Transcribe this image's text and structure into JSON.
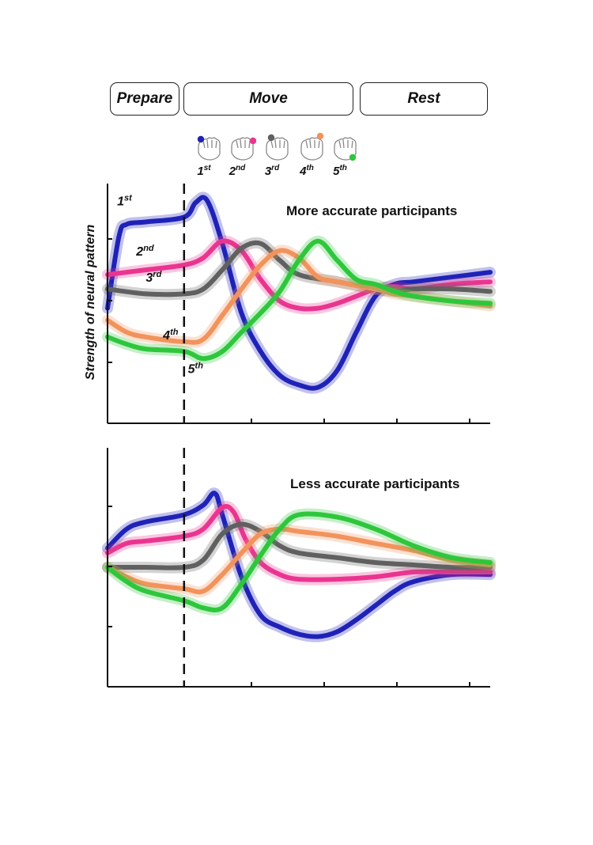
{
  "phases": [
    {
      "label": "Prepare"
    },
    {
      "label": "Move"
    },
    {
      "label": "Rest"
    }
  ],
  "legend": [
    {
      "base": "1",
      "sup": "st",
      "color": "#1f22b8"
    },
    {
      "base": "2",
      "sup": "nd",
      "color": "#ea3590"
    },
    {
      "base": "3",
      "sup": "rd",
      "color": "#606060"
    },
    {
      "base": "4",
      "sup": "th",
      "color": "#f2935c"
    },
    {
      "base": "5",
      "sup": "th",
      "color": "#2ec73c"
    }
  ],
  "chart_data": [
    {
      "type": "line",
      "title": "More accurate participants",
      "ylabel": "Strength of neural pattern",
      "xlabel": "",
      "xlim": [
        0,
        10
      ],
      "ylim": [
        0,
        10
      ],
      "grid": false,
      "prepare_end_x": 2,
      "series": [
        {
          "name": "1st",
          "color": "#1f22b8",
          "x": [
            0,
            0.3,
            0.5,
            1,
            2,
            2.3,
            2.6,
            3,
            3.5,
            4,
            4.5,
            5,
            5.5,
            6,
            6.5,
            7,
            7.5,
            8,
            9,
            10
          ],
          "y": [
            4.8,
            7.8,
            8.3,
            8.4,
            8.6,
            9.2,
            9.3,
            7.5,
            4.6,
            3.0,
            2.0,
            1.6,
            1.5,
            2.2,
            3.8,
            5.3,
            5.8,
            5.9,
            6.1,
            6.3
          ]
        },
        {
          "name": "2nd",
          "color": "#ea3590",
          "x": [
            0,
            1,
            2,
            2.5,
            3,
            3.5,
            4,
            4.5,
            5,
            5.5,
            6,
            6.5,
            7,
            7.5,
            8,
            9,
            10
          ],
          "y": [
            6.2,
            6.4,
            6.6,
            6.9,
            7.6,
            7.2,
            6.0,
            5.1,
            4.8,
            4.8,
            5.0,
            5.3,
            5.6,
            5.7,
            5.6,
            5.8,
            5.9
          ]
        },
        {
          "name": "3rd",
          "color": "#606060",
          "x": [
            0,
            1,
            2,
            2.5,
            3,
            3.5,
            4,
            4.5,
            5,
            6,
            7,
            7.5,
            8,
            9,
            10
          ],
          "y": [
            5.6,
            5.4,
            5.4,
            5.6,
            6.4,
            7.3,
            7.5,
            6.8,
            6.2,
            5.9,
            5.6,
            5.5,
            5.6,
            5.6,
            5.5
          ]
        },
        {
          "name": "4th",
          "color": "#f2935c",
          "x": [
            0,
            0.5,
            1,
            2,
            2.5,
            3,
            3.5,
            4,
            4.5,
            5,
            5.5,
            6,
            7,
            7.5,
            8,
            9,
            10
          ],
          "y": [
            4.3,
            3.8,
            3.6,
            3.4,
            3.5,
            4.5,
            5.6,
            6.6,
            7.2,
            6.9,
            6.1,
            5.9,
            5.6,
            5.4,
            5.3,
            5.1,
            4.9
          ]
        },
        {
          "name": "5th",
          "color": "#2ec73c",
          "x": [
            0,
            0.5,
            1,
            2,
            2.5,
            3,
            3.5,
            4,
            4.5,
            5,
            5.5,
            6,
            6.5,
            7,
            7.5,
            8,
            9,
            10
          ],
          "y": [
            3.6,
            3.3,
            3.1,
            3.0,
            2.7,
            3.0,
            3.8,
            4.6,
            5.5,
            6.8,
            7.6,
            6.8,
            6.0,
            5.8,
            5.5,
            5.3,
            5.1,
            5.0
          ]
        }
      ]
    },
    {
      "type": "line",
      "title": "Less accurate participants",
      "ylabel": "",
      "xlabel": "",
      "xlim": [
        0,
        10
      ],
      "ylim": [
        0,
        10
      ],
      "grid": false,
      "prepare_end_x": 2,
      "series": [
        {
          "name": "1st",
          "color": "#1f22b8",
          "x": [
            0,
            0.5,
            1,
            2,
            2.5,
            2.8,
            3,
            3.5,
            4,
            4.5,
            5,
            5.5,
            6,
            6.5,
            7,
            7.5,
            8,
            9,
            10
          ],
          "y": [
            5.8,
            6.6,
            6.9,
            7.2,
            7.6,
            8.1,
            7.2,
            4.6,
            3.0,
            2.5,
            2.2,
            2.1,
            2.3,
            2.8,
            3.4,
            4.0,
            4.4,
            4.7,
            4.7
          ]
        },
        {
          "name": "2nd",
          "color": "#ea3590",
          "x": [
            0,
            0.5,
            1,
            2,
            2.5,
            3,
            3.3,
            3.6,
            4,
            4.5,
            5,
            6,
            7,
            8,
            9,
            10
          ],
          "y": [
            5.6,
            6.0,
            6.1,
            6.3,
            6.6,
            7.5,
            7.3,
            6.2,
            5.2,
            4.7,
            4.5,
            4.5,
            4.6,
            4.8,
            4.8,
            4.8
          ]
        },
        {
          "name": "3rd",
          "color": "#606060",
          "x": [
            0,
            1,
            2,
            2.5,
            3,
            3.5,
            4,
            4.5,
            5,
            6,
            7,
            8,
            9,
            10
          ],
          "y": [
            5.0,
            5.0,
            5.0,
            5.3,
            6.4,
            6.8,
            6.5,
            5.9,
            5.6,
            5.4,
            5.2,
            5.1,
            5.0,
            5.0
          ]
        },
        {
          "name": "4th",
          "color": "#f2935c",
          "x": [
            0,
            0.5,
            1,
            2,
            2.5,
            3,
            3.5,
            4,
            4.5,
            5,
            6,
            7,
            8,
            9,
            10
          ],
          "y": [
            5.0,
            4.6,
            4.3,
            4.1,
            4.0,
            4.7,
            5.6,
            6.4,
            6.6,
            6.5,
            6.3,
            6.0,
            5.7,
            5.3,
            5.1
          ]
        },
        {
          "name": "5th",
          "color": "#2ec73c",
          "x": [
            0,
            0.5,
            1,
            2,
            2.5,
            3,
            3.5,
            4,
            4.5,
            5,
            6,
            7,
            8,
            9,
            10
          ],
          "y": [
            5.0,
            4.4,
            4.0,
            3.6,
            3.3,
            3.3,
            4.3,
            5.5,
            6.6,
            7.2,
            7.1,
            6.6,
            5.9,
            5.4,
            5.2
          ]
        }
      ]
    }
  ]
}
